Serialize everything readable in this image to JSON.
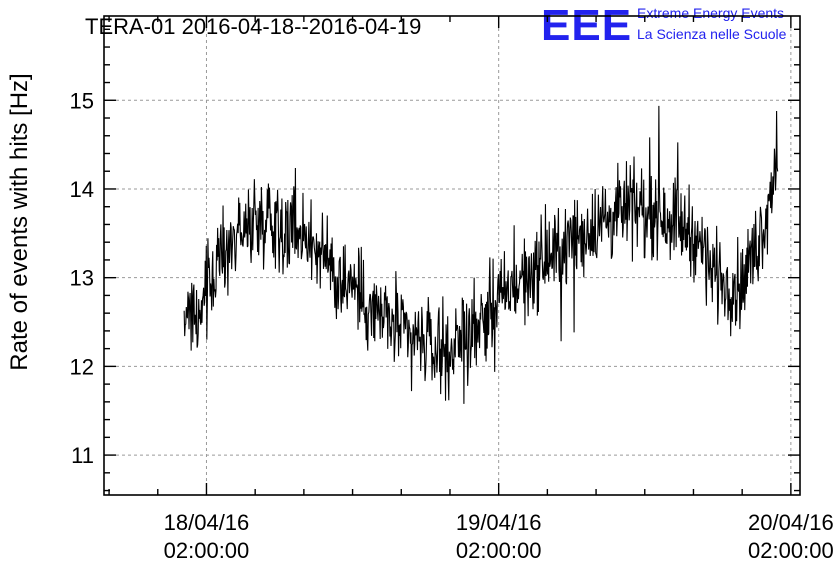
{
  "chart_data": {
    "type": "line",
    "title": "TERA-01 2016-04-18--2016-04-19",
    "ylabel": "Rate of events with hits [Hz]",
    "xlabel": "",
    "ylim": [
      10.55,
      15.95
    ],
    "xlim": [
      "2016-04-17 17:35",
      "2016-04-20 02:45"
    ],
    "grid": true,
    "y_ticks": [
      11,
      12,
      13,
      14,
      15
    ],
    "x_ticks": [
      {
        "t": "2016-04-18 02:00",
        "line1": "18/04/16",
        "line2": "02:00:00"
      },
      {
        "t": "2016-04-19 02:00",
        "line1": "19/04/16",
        "line2": "02:00:00"
      },
      {
        "t": "2016-04-20 02:00",
        "line1": "20/04/16",
        "line2": "02:00:00"
      }
    ],
    "series": [
      {
        "color": "#000000",
        "trend": {
          "x": [
            "2016-04-18 00:10",
            "2016-04-18 01:00",
            "2016-04-18 02:00",
            "2016-04-18 04:00",
            "2016-04-18 07:00",
            "2016-04-18 10:00",
            "2016-04-18 13:00",
            "2016-04-18 16:00",
            "2016-04-18 19:00",
            "2016-04-18 22:00",
            "2016-04-19 01:00",
            "2016-04-19 04:00",
            "2016-04-19 07:00",
            "2016-04-19 10:00",
            "2016-04-19 13:00",
            "2016-04-19 16:00",
            "2016-04-19 18:00",
            "2016-04-19 20:00",
            "2016-04-19 22:00",
            "2016-04-20 00:00",
            "2016-04-20 00:55"
          ],
          "y": [
            12.5,
            12.6,
            12.9,
            13.4,
            13.7,
            13.5,
            13.0,
            12.6,
            12.3,
            12.2,
            12.6,
            13.0,
            13.3,
            13.6,
            13.8,
            13.7,
            13.5,
            13.0,
            12.9,
            13.7,
            14.5
          ]
        },
        "noise_amplitude_hz": 0.5,
        "samples": 1100
      }
    ]
  },
  "logo": {
    "letters": "EEE",
    "line1": "Extreme Energy Events",
    "line2": "La Scienza nelle Scuole"
  }
}
